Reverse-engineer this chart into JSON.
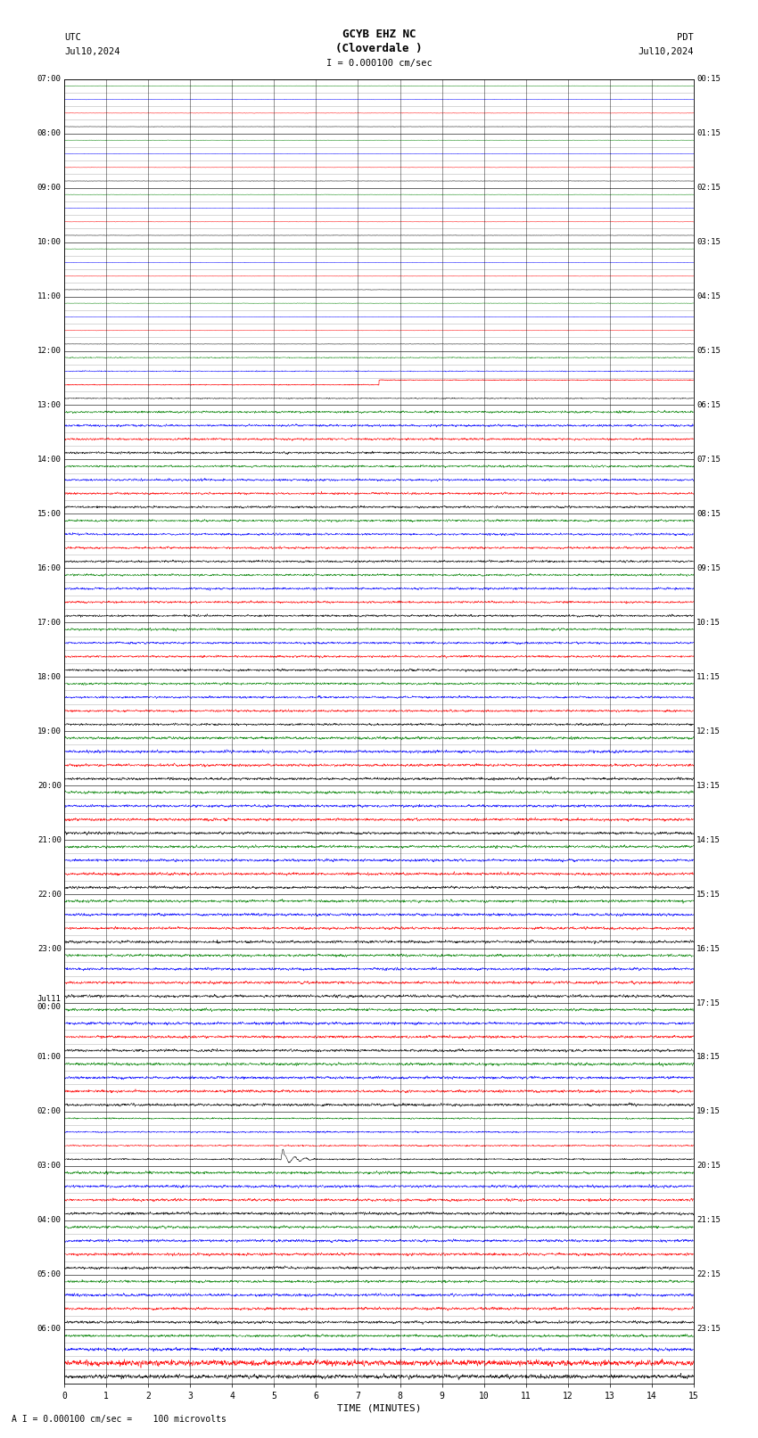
{
  "title_line1": "GCYB EHZ NC",
  "title_line2": "(Cloverdale )",
  "scale_label": "I = 0.000100 cm/sec",
  "left_label": "UTC",
  "left_date": "Jul10,2024",
  "right_label": "PDT",
  "right_date": "Jul10,2024",
  "bottom_label": "TIME (MINUTES)",
  "scale_note": "A I = 0.000100 cm/sec =    100 microvolts",
  "utc_times": [
    "07:00",
    "08:00",
    "09:00",
    "10:00",
    "11:00",
    "12:00",
    "13:00",
    "14:00",
    "15:00",
    "16:00",
    "17:00",
    "18:00",
    "19:00",
    "20:00",
    "21:00",
    "22:00",
    "23:00",
    "Jul11\n00:00",
    "01:00",
    "02:00",
    "03:00",
    "04:00",
    "05:00",
    "06:00"
  ],
  "pdt_times": [
    "00:15",
    "01:15",
    "02:15",
    "03:15",
    "04:15",
    "05:15",
    "06:15",
    "07:15",
    "08:15",
    "09:15",
    "10:15",
    "11:15",
    "12:15",
    "13:15",
    "14:15",
    "15:15",
    "16:15",
    "17:15",
    "18:15",
    "19:15",
    "20:15",
    "21:15",
    "22:15",
    "23:15"
  ],
  "n_hour_blocks": 24,
  "n_minutes": 15,
  "row_colors_cycle": [
    "black",
    "red",
    "blue",
    "green"
  ],
  "bg_color": "white",
  "grid_color": "#888888",
  "figsize": [
    8.5,
    16.13
  ],
  "dpi": 100,
  "quiet_hours": 5,
  "calib_block": 5,
  "earthquake_block": 19,
  "earthquake_minute": 5.2,
  "last_block_colors": [
    "black",
    "red",
    "green",
    "blue"
  ]
}
